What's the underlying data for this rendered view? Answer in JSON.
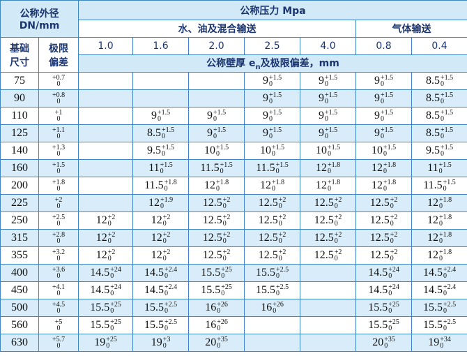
{
  "header": {
    "dn_label": [
      "公称外径",
      "DN/mm"
    ],
    "pressure_label": "公称压力 Mpa",
    "group_liquid": "水、油及混合输送",
    "group_gas": "气体输送",
    "pressures": [
      "1.0",
      "1.6",
      "2.0",
      "2.5",
      "4.0",
      "0.8",
      "0.4"
    ],
    "base_size": [
      "基础",
      "尺寸"
    ],
    "tolerance": [
      "极限",
      "偏差"
    ],
    "wall": {
      "prefix": "公称壁厚 e",
      "sub": "n",
      "suffix": "及极限偏差，mm"
    }
  },
  "rows": [
    {
      "dn": 75,
      "tol": [
        "+0.7",
        0
      ],
      "cells": [
        null,
        null,
        null,
        [
          9,
          "+1.5",
          0
        ],
        [
          9,
          "+1.5",
          0
        ],
        [
          9,
          "+1.5",
          0
        ],
        [
          8.5,
          "+1.5",
          0
        ]
      ]
    },
    {
      "dn": 90,
      "tol": [
        "+0.8",
        0
      ],
      "cells": [
        null,
        null,
        null,
        [
          9,
          "+1.5",
          0
        ],
        [
          9,
          "+1.5",
          0
        ],
        [
          9,
          "+1.5",
          0
        ],
        [
          8.5,
          "+1.5",
          0
        ]
      ]
    },
    {
      "dn": 110,
      "tol": [
        "+1",
        0
      ],
      "cells": [
        null,
        [
          9,
          "+1.5",
          0
        ],
        [
          9,
          "+1.5",
          0
        ],
        [
          9,
          "+1.5",
          0
        ],
        [
          9,
          "+1.5",
          0
        ],
        [
          9,
          "+1.5",
          0
        ],
        [
          8.5,
          "+1.5",
          0
        ]
      ]
    },
    {
      "dn": 125,
      "tol": [
        "+1.1",
        0
      ],
      "cells": [
        null,
        [
          8.5,
          "+1.5",
          0
        ],
        [
          9,
          "+1.5",
          0
        ],
        [
          9,
          "+1.5",
          0
        ],
        [
          9,
          "+1.5",
          0
        ],
        [
          9,
          "+1.5",
          0
        ],
        [
          8.5,
          "+1.5",
          0
        ]
      ]
    },
    {
      "dn": 140,
      "tol": [
        "+1.3",
        0
      ],
      "cells": [
        null,
        [
          9.5,
          "+1.5",
          0
        ],
        [
          10,
          "+1.5",
          0
        ],
        [
          10,
          "+1.5",
          0
        ],
        [
          10,
          "+1.5",
          0
        ],
        [
          10,
          "+1.5",
          0
        ],
        [
          9.5,
          "+1.5",
          0
        ]
      ]
    },
    {
      "dn": 160,
      "tol": [
        "+1.5",
        0
      ],
      "cells": [
        null,
        [
          11,
          "+1.5",
          0
        ],
        [
          11.5,
          "+1.5",
          0
        ],
        [
          11.5,
          "+1.5",
          0
        ],
        [
          12,
          "+1.8",
          0
        ],
        [
          12,
          "+1.8",
          0
        ],
        [
          11,
          "+1.5",
          0
        ]
      ]
    },
    {
      "dn": 200,
      "tol": [
        "+1.8",
        0
      ],
      "cells": [
        null,
        [
          11.5,
          "+1.8",
          0
        ],
        [
          12,
          "+1.8",
          0
        ],
        [
          12,
          "+1.8",
          0
        ],
        [
          12,
          "+1.8",
          0
        ],
        [
          12,
          "+1.8",
          0
        ],
        [
          11.5,
          "+1.5",
          0
        ]
      ]
    },
    {
      "dn": 225,
      "tol": [
        "+2",
        0
      ],
      "cells": [
        null,
        [
          12,
          "+1.9",
          0
        ],
        [
          12.5,
          "+2",
          0
        ],
        [
          12.5,
          "+2",
          0
        ],
        [
          12.5,
          "+2",
          0
        ],
        [
          12.5,
          "+2",
          0
        ],
        [
          12,
          "+1.8",
          0
        ]
      ]
    },
    {
      "dn": 250,
      "tol": [
        "+2.5",
        0
      ],
      "cells": [
        [
          12,
          "+2",
          0
        ],
        [
          12,
          "+2",
          0
        ],
        [
          12.5,
          "+2",
          0
        ],
        [
          12.5,
          "+2",
          0
        ],
        [
          12.5,
          "+2",
          0
        ],
        [
          12.5,
          "+2",
          0
        ],
        [
          12,
          "+1.8",
          0
        ]
      ]
    },
    {
      "dn": 315,
      "tol": [
        "+2.8",
        0
      ],
      "cells": [
        [
          12,
          "+2",
          0
        ],
        [
          12,
          "+2",
          0
        ],
        [
          12.5,
          "+2",
          0
        ],
        [
          12.5,
          "+2",
          0
        ],
        [
          12.5,
          "+2",
          0
        ],
        [
          12.5,
          "+2",
          0
        ],
        [
          12,
          "+1.8",
          0
        ]
      ]
    },
    {
      "dn": 355,
      "tol": [
        "+3.2",
        0
      ],
      "cells": [
        [
          12,
          "+2",
          0
        ],
        [
          12,
          "+2",
          0
        ],
        [
          12.5,
          "+2",
          0
        ],
        [
          12.5,
          "+2",
          0
        ],
        [
          12.5,
          "+2",
          0
        ],
        [
          12.5,
          "+2",
          0
        ],
        [
          12,
          "+1.8",
          0
        ]
      ]
    },
    {
      "dn": 400,
      "tol": [
        "+3.6",
        0
      ],
      "cells": [
        [
          14.5,
          "+24",
          0
        ],
        [
          14.5,
          "+2.4",
          0
        ],
        [
          15.5,
          "+25",
          0
        ],
        [
          15.5,
          "+2.5",
          0
        ],
        null,
        [
          14.5,
          "+24",
          0
        ],
        [
          14.5,
          "+2.4",
          0
        ]
      ]
    },
    {
      "dn": 450,
      "tol": [
        "+4.1",
        0
      ],
      "cells": [
        [
          14.5,
          "+24",
          0
        ],
        [
          14.5,
          "+2.4",
          0
        ],
        [
          15.5,
          "+25",
          0
        ],
        [
          15.5,
          "+2.5",
          0
        ],
        null,
        [
          14.5,
          "+24",
          0
        ],
        [
          14.5,
          "+2.4",
          0
        ]
      ]
    },
    {
      "dn": 500,
      "tol": [
        "+4.5",
        0
      ],
      "cells": [
        [
          15.5,
          "+25",
          0
        ],
        [
          15.5,
          "+2.5",
          0
        ],
        [
          16,
          "+26",
          0
        ],
        [
          16,
          "+26",
          0
        ],
        null,
        [
          15.5,
          "+25",
          0
        ],
        [
          15.5,
          "+2.5",
          0
        ]
      ]
    },
    {
      "dn": 560,
      "tol": [
        "+5",
        0
      ],
      "cells": [
        [
          15.5,
          "+25",
          0
        ],
        [
          15.5,
          "+2.5",
          0
        ],
        [
          16,
          "+26",
          0
        ],
        null,
        null,
        [
          15.5,
          "+25",
          0
        ],
        [
          15.5,
          "+2.5",
          0
        ]
      ]
    },
    {
      "dn": 630,
      "tol": [
        "+5.7",
        0
      ],
      "cells": [
        [
          19,
          "+25",
          0
        ],
        [
          19,
          "+3",
          0
        ],
        [
          20,
          "+35",
          0
        ],
        null,
        null,
        [
          20,
          "+35",
          0
        ],
        [
          19,
          "+34",
          0
        ]
      ]
    }
  ]
}
